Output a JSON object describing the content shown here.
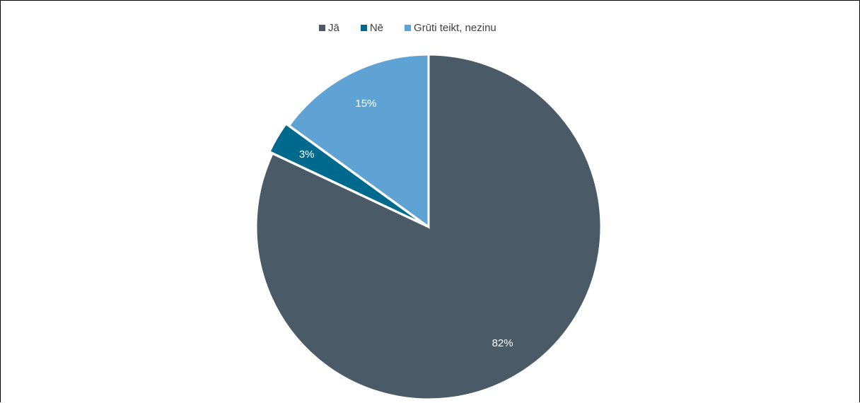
{
  "chart_data": {
    "type": "pie",
    "categories": [
      "Jā",
      "Nē",
      "Grūti teikt, nezinu"
    ],
    "values": [
      82,
      3,
      15
    ],
    "data_labels": [
      "82%",
      "3%",
      "15%"
    ],
    "colors": [
      "#4a5a66",
      "#006a8e",
      "#5fa3d4"
    ],
    "legend_position": "top",
    "exploded_slice": "Nē"
  }
}
